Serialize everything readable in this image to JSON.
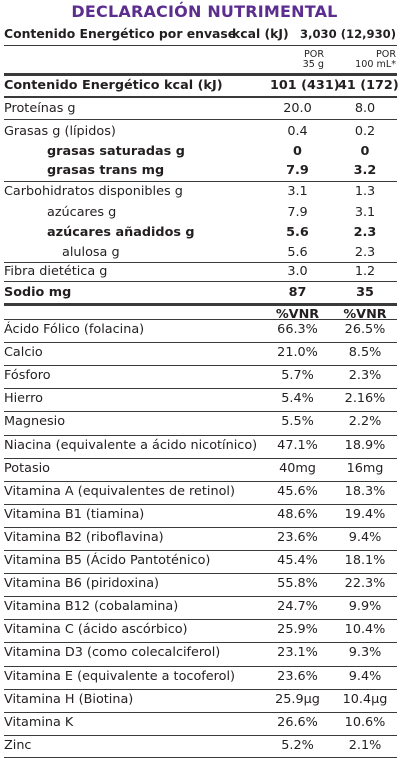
{
  "title": "DECLARACIÓN NUTRIMENTAL",
  "package_energy": {
    "label": "Contenido Energético por envase",
    "unit": "kcal (kJ)",
    "value": "3,030 (12,930)"
  },
  "portions": {
    "col1": {
      "line1": "POR",
      "line2": "35 g"
    },
    "col2": {
      "line1": "POR",
      "line2": "100 mL*"
    }
  },
  "nutrients": [
    {
      "label": "Contenido Energético kcal (kJ)",
      "v1": "101 (431)",
      "v2": "41 (172)"
    },
    {
      "label": "Proteínas g",
      "v1": "20.0",
      "v2": "8.0"
    },
    {
      "label": "Grasas g (lípidos)",
      "v1": "0.4",
      "v2": "0.2"
    },
    {
      "label": "grasas saturadas g",
      "v1": "0",
      "v2": "0"
    },
    {
      "label": "grasas trans mg",
      "v1": "7.9",
      "v2": "3.2"
    },
    {
      "label": "Carbohidratos disponibles g",
      "v1": "3.1",
      "v2": "1.3"
    },
    {
      "label": "azúcares g",
      "v1": "7.9",
      "v2": "3.1"
    },
    {
      "label": "azúcares añadidos g",
      "v1": "5.6",
      "v2": "2.3"
    },
    {
      "label": "alulosa g",
      "v1": "5.6",
      "v2": "2.3"
    },
    {
      "label": "Fibra dietética g",
      "v1": "3.0",
      "v2": "1.2"
    },
    {
      "label": "Sodio mg",
      "v1": "87",
      "v2": "35"
    }
  ],
  "vnr_header": {
    "v1": "%VNR",
    "v2": "%VNR"
  },
  "vitamins": [
    {
      "label": "Ácido Fólico (folacina)",
      "v1": "66.3%",
      "v2": "26.5%"
    },
    {
      "label": "Calcio",
      "v1": "21.0%",
      "v2": "8.5%"
    },
    {
      "label": "Fósforo",
      "v1": "5.7%",
      "v2": "2.3%"
    },
    {
      "label": "Hierro",
      "v1": "5.4%",
      "v2": "2.16%"
    },
    {
      "label": "Magnesio",
      "v1": "5.5%",
      "v2": "2.2%"
    },
    {
      "label": "Niacina (equivalente a ácido nicotínico)",
      "v1": "47.1%",
      "v2": "18.9%"
    },
    {
      "label": "Potasio",
      "v1": "40mg",
      "v2": "16mg"
    },
    {
      "label": "Vitamina A  (equivalentes de retinol)",
      "v1": "45.6%",
      "v2": "18.3%"
    },
    {
      "label": "Vitamina B1  (tiamina)",
      "v1": "48.6%",
      "v2": "19.4%"
    },
    {
      "label": "Vitamina B2  (riboflavina)",
      "v1": "23.6%",
      "v2": "9.4%"
    },
    {
      "label": "Vitamina B5 (Ácido Pantoténico)",
      "v1": "45.4%",
      "v2": "18.1%"
    },
    {
      "label": "Vitamina B6  (piridoxina)",
      "v1": "55.8%",
      "v2": "22.3%"
    },
    {
      "label": "Vitamina B12  (cobalamina)",
      "v1": "24.7%",
      "v2": "9.9%"
    },
    {
      "label": "Vitamina C  (ácido ascórbico)",
      "v1": "25.9%",
      "v2": "10.4%"
    },
    {
      "label": "Vitamina D3 (como colecalciferol)",
      "v1": "23.1%",
      "v2": "9.3%"
    },
    {
      "label": "Vitamina E  (equivalente a tocoferol)",
      "v1": "23.6%",
      "v2": "9.4%"
    },
    {
      "label": "Vitamina H (Biotina)",
      "v1": "25.9µg",
      "v2": "10.4µg"
    },
    {
      "label": "Vitamina K",
      "v1": "26.6%",
      "v2": "10.6%"
    },
    {
      "label": "Zinc",
      "v1": "5.2%",
      "v2": "2.1%"
    }
  ]
}
